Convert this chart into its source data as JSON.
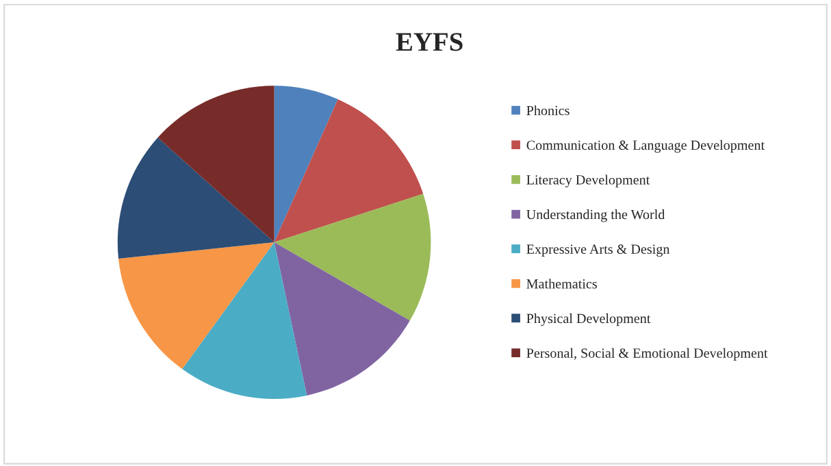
{
  "chart_data": {
    "type": "pie",
    "title": "EYFS",
    "categories": [
      "Phonics",
      "Communication & Language Development",
      "Literacy Development",
      "Understanding the World",
      "Expressive Arts & Design",
      "Mathematics",
      "Physical Development",
      "Personal, Social & Emotional Development"
    ],
    "values": [
      6.66,
      13.334,
      13.334,
      13.334,
      13.334,
      13.334,
      13.334,
      13.334
    ],
    "colors": [
      "#4f81bd",
      "#c0504d",
      "#9bbb59",
      "#8064a2",
      "#4bacc6",
      "#f79646",
      "#2c4d75",
      "#772c2a"
    ],
    "legend": "right"
  }
}
